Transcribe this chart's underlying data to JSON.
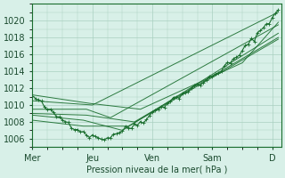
{
  "background_color": "#d8f0e8",
  "grid_color": "#aad0c0",
  "line_color": "#1a6e2e",
  "xlabel": "Pression niveau de la mer( hPa )",
  "ylim": [
    1005,
    1022
  ],
  "yticks": [
    1006,
    1008,
    1010,
    1012,
    1014,
    1016,
    1018,
    1020
  ],
  "xlim": [
    0,
    4.15
  ],
  "xtick_positions": [
    0,
    1,
    2,
    3,
    4
  ],
  "xtick_labels": [
    "Mer",
    "Jeu",
    "Ven",
    "Sam",
    "D"
  ],
  "noisy_x": [
    0.0,
    0.05,
    0.1,
    0.15,
    0.2,
    0.25,
    0.3,
    0.35,
    0.4,
    0.45,
    0.5,
    0.55,
    0.6,
    0.65,
    0.7,
    0.75,
    0.8,
    0.85,
    0.9,
    0.95,
    1.0,
    1.05,
    1.1,
    1.15,
    1.2,
    1.25,
    1.3,
    1.35,
    1.4,
    1.45,
    1.5,
    1.55,
    1.6,
    1.65,
    1.7,
    1.75,
    1.8,
    1.85,
    1.9,
    1.95,
    2.0,
    2.05,
    2.1,
    2.15,
    2.2,
    2.25,
    2.3,
    2.35,
    2.4,
    2.45,
    2.5,
    2.55,
    2.6,
    2.65,
    2.7,
    2.75,
    2.8,
    2.85,
    2.9,
    2.95,
    3.0,
    3.05,
    3.1,
    3.15,
    3.2,
    3.25,
    3.3,
    3.35,
    3.4,
    3.45,
    3.5,
    3.55,
    3.6,
    3.65,
    3.7,
    3.75,
    3.8,
    3.85,
    3.9,
    3.95,
    4.0,
    4.05,
    4.1
  ],
  "noisy_y": [
    1011.0,
    1010.8,
    1010.5,
    1010.2,
    1009.8,
    1009.5,
    1009.2,
    1009.0,
    1008.7,
    1008.5,
    1008.3,
    1008.1,
    1007.9,
    1007.6,
    1007.4,
    1007.2,
    1007.0,
    1006.8,
    1006.6,
    1006.4,
    1006.2,
    1006.3,
    1006.1,
    1006.2,
    1006.0,
    1006.1,
    1006.3,
    1006.5,
    1006.7,
    1006.8,
    1007.0,
    1007.1,
    1007.3,
    1007.4,
    1007.6,
    1007.8,
    1008.0,
    1008.2,
    1008.5,
    1008.7,
    1009.0,
    1009.3,
    1009.5,
    1009.8,
    1010.0,
    1010.3,
    1010.5,
    1010.7,
    1010.9,
    1011.1,
    1011.3,
    1011.5,
    1011.7,
    1011.9,
    1012.1,
    1012.3,
    1012.5,
    1012.7,
    1012.9,
    1013.2,
    1013.5,
    1013.7,
    1014.0,
    1014.2,
    1014.5,
    1014.8,
    1015.0,
    1015.3,
    1015.6,
    1016.0,
    1016.4,
    1016.8,
    1017.2,
    1017.6,
    1018.0,
    1018.4,
    1018.8,
    1019.2,
    1019.6,
    1020.0,
    1020.4,
    1020.8,
    1021.0
  ],
  "forecast_lines_x": [
    [
      0.0,
      1.0,
      4.1
    ],
    [
      0.0,
      0.9,
      1.3,
      4.1
    ],
    [
      0.0,
      0.85,
      1.5,
      4.1
    ],
    [
      0.0,
      0.85,
      1.6,
      4.1
    ],
    [
      0.0,
      0.9,
      1.7,
      4.1
    ],
    [
      0.0,
      0.95,
      1.8,
      3.5,
      4.1
    ]
  ],
  "forecast_lines_y": [
    [
      1010.5,
      1010.0,
      1021.0
    ],
    [
      1009.5,
      1009.5,
      1008.5,
      1019.5
    ],
    [
      1008.8,
      1008.2,
      1007.0,
      1018.5
    ],
    [
      1008.2,
      1007.5,
      1007.5,
      1017.8
    ],
    [
      1009.0,
      1008.8,
      1008.0,
      1018.0
    ],
    [
      1011.2,
      1010.2,
      1009.5,
      1015.0,
      1019.8
    ]
  ]
}
